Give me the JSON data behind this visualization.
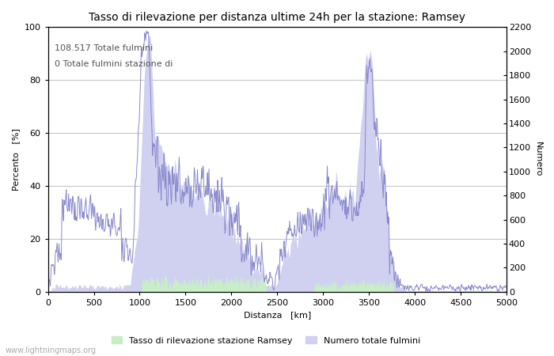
{
  "title": "Tasso di rilevazione per distanza ultime 24h per la stazione: Ramsey",
  "xlabel": "Distanza   [km]",
  "ylabel_left": "Percento   [%]",
  "ylabel_right": "Numero",
  "annotation_line1": "108.517 Totale fulmini",
  "annotation_line2": "0 Totale fulmini stazione di",
  "xlim": [
    0,
    5000
  ],
  "ylim_left": [
    0,
    100
  ],
  "ylim_right": [
    0,
    2200
  ],
  "xticks": [
    0,
    500,
    1000,
    1500,
    2000,
    2500,
    3000,
    3500,
    4000,
    4500,
    5000
  ],
  "yticks_left": [
    0,
    20,
    40,
    60,
    80,
    100
  ],
  "yticks_right": [
    0,
    200,
    400,
    600,
    800,
    1000,
    1200,
    1400,
    1600,
    1800,
    2000,
    2200
  ],
  "legend_label_green": "Tasso di rilevazione stazione Ramsey",
  "legend_label_blue": "Numero totale fulmini",
  "watermark": "www.lightningmaps.org",
  "line_color": "#8888cc",
  "fill_green_color": "#c8eec8",
  "fill_blue_color": "#d0d0f0",
  "bg_color": "#ffffff",
  "grid_color": "#c8c8c8"
}
